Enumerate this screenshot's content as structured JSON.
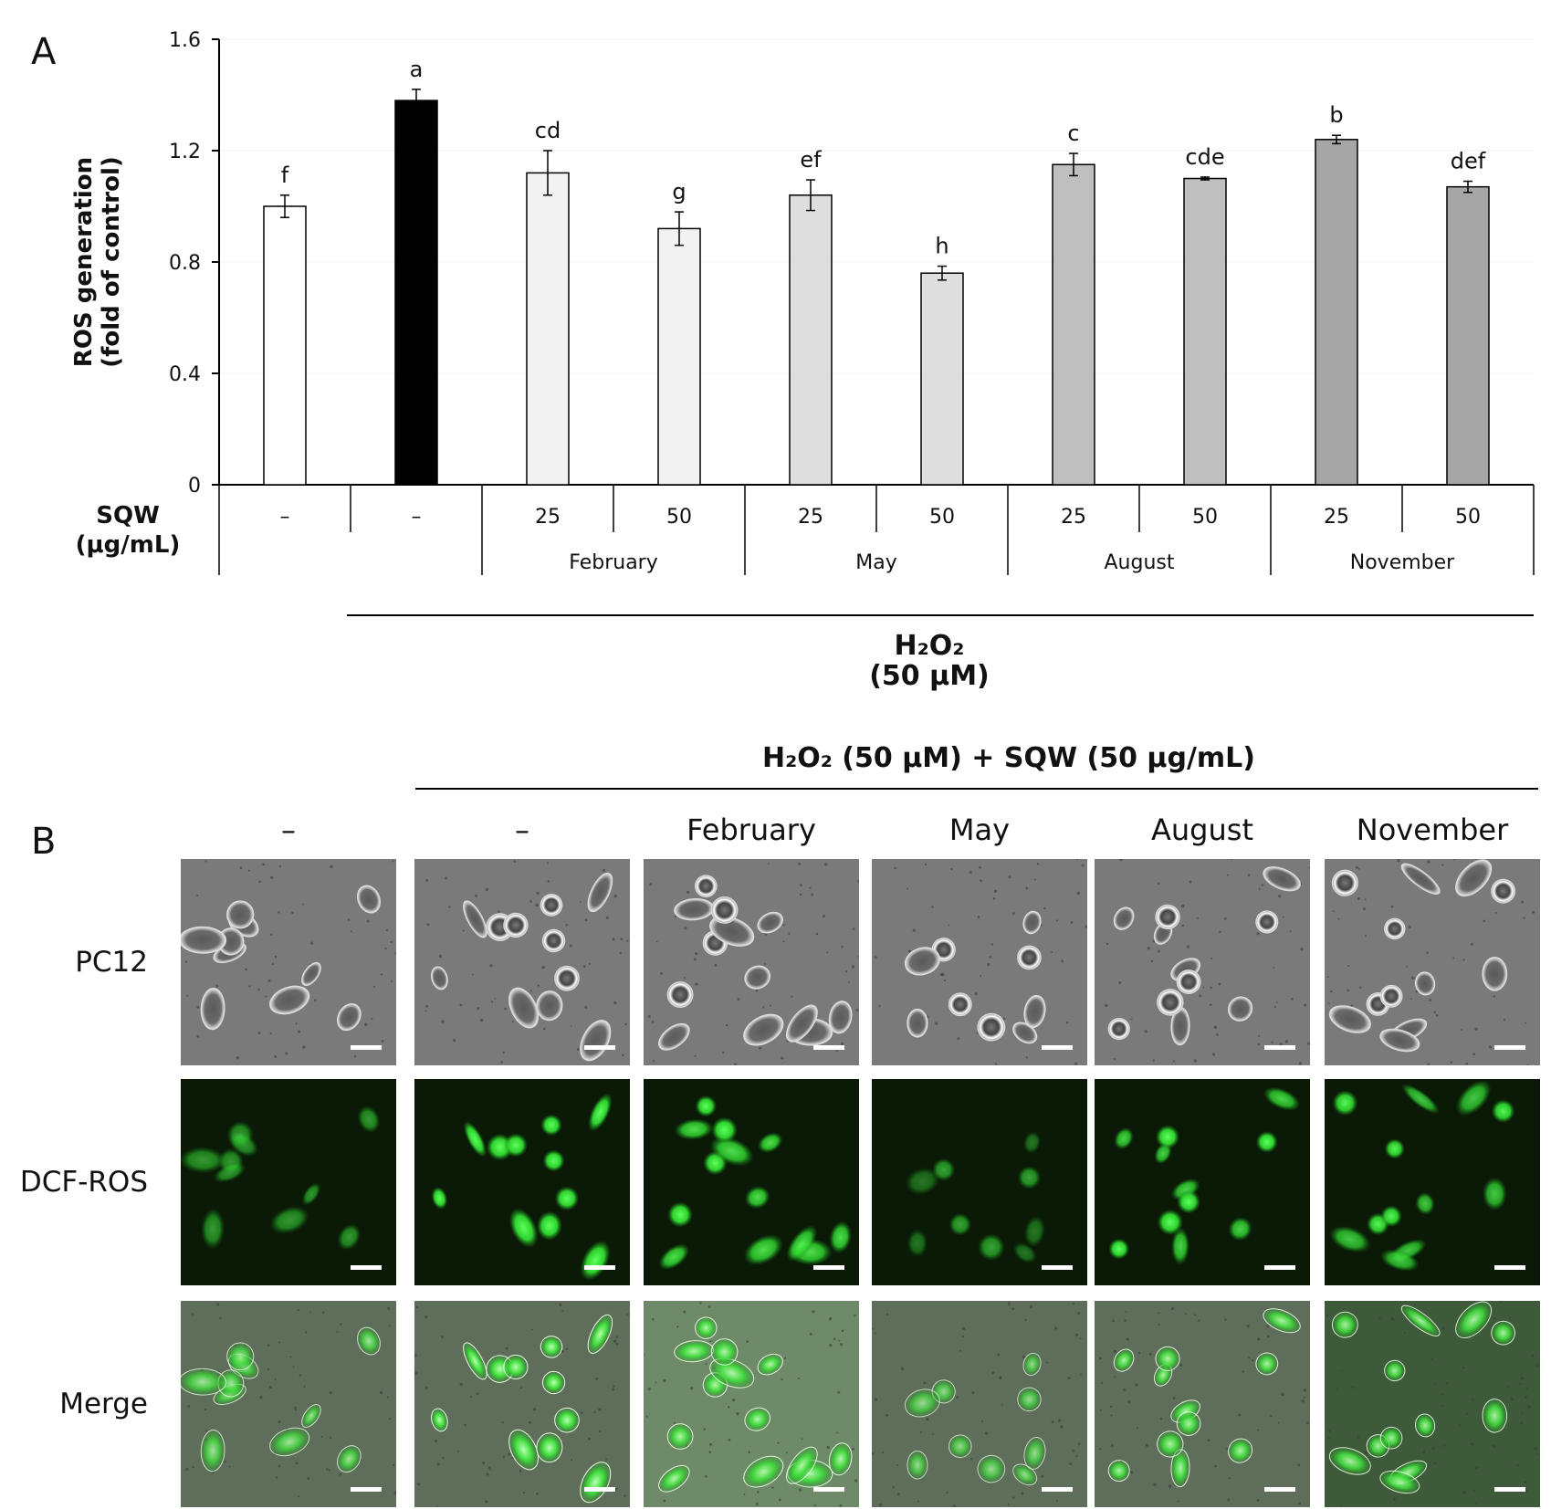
{
  "panels": {
    "a": "A",
    "b": "B"
  },
  "chart_data": {
    "type": "bar",
    "ylabel_line1": "ROS generation",
    "ylabel_line2": "(fold of control)",
    "ylim": [
      0,
      1.6
    ],
    "yticks": [
      "0",
      "0.4",
      "0.8",
      "1.2",
      "1.6"
    ],
    "bars": [
      {
        "sqw": "–",
        "month": "",
        "value": 1.0,
        "error": 0.04,
        "letter": "f",
        "color": "#ffffff"
      },
      {
        "sqw": "–",
        "month": "",
        "value": 1.38,
        "error": 0.04,
        "letter": "a",
        "color": "#000000"
      },
      {
        "sqw": "25",
        "month": "February",
        "value": 1.12,
        "error": 0.08,
        "letter": "cd",
        "color": "#f2f2f2"
      },
      {
        "sqw": "50",
        "month": "February",
        "value": 0.92,
        "error": 0.06,
        "letter": "g",
        "color": "#f2f2f2"
      },
      {
        "sqw": "25",
        "month": "May",
        "value": 1.04,
        "error": 0.055,
        "letter": "ef",
        "color": "#dedede"
      },
      {
        "sqw": "50",
        "month": "May",
        "value": 0.76,
        "error": 0.025,
        "letter": "h",
        "color": "#dedede"
      },
      {
        "sqw": "25",
        "month": "August",
        "value": 1.15,
        "error": 0.04,
        "letter": "c",
        "color": "#bfbfbf"
      },
      {
        "sqw": "50",
        "month": "August",
        "value": 1.1,
        "error": 0.005,
        "letter": "cde",
        "color": "#bfbfbf"
      },
      {
        "sqw": "25",
        "month": "November",
        "value": 1.24,
        "error": 0.015,
        "letter": "b",
        "color": "#a6a6a6"
      },
      {
        "sqw": "50",
        "month": "November",
        "value": 1.07,
        "error": 0.02,
        "letter": "def",
        "color": "#a6a6a6"
      }
    ],
    "months": [
      "February",
      "May",
      "August",
      "November"
    ],
    "sqw_label_line1": "SQW",
    "sqw_label_line2": "(μg/mL)",
    "h2o2_label_line1": "H₂O₂",
    "h2o2_label_line2": "(50 μM)"
  },
  "panel_b": {
    "header": "H₂O₂ (50 μM) + SQW (50 μg/mL)",
    "columns": [
      "–",
      "–",
      "February",
      "May",
      "August",
      "November"
    ],
    "rows": [
      "PC12",
      "DCF-ROS",
      "Merge"
    ],
    "cells": [
      {
        "col": "–",
        "row": "PC12"
      },
      {
        "col": "–",
        "row": "DCF-ROS"
      },
      {
        "col": "–",
        "row": "Merge"
      }
    ],
    "colors": {
      "phase_bg": "#7a7a7a",
      "fluor_bg": "#0a1a07",
      "fluor_cell": "#2ed12e",
      "merge_bg": "#5f6e5a",
      "scale_bar": "#ffffff"
    },
    "intensity": {
      "dcf": [
        0.55,
        1.0,
        0.85,
        0.4,
        0.8,
        0.75
      ]
    }
  }
}
